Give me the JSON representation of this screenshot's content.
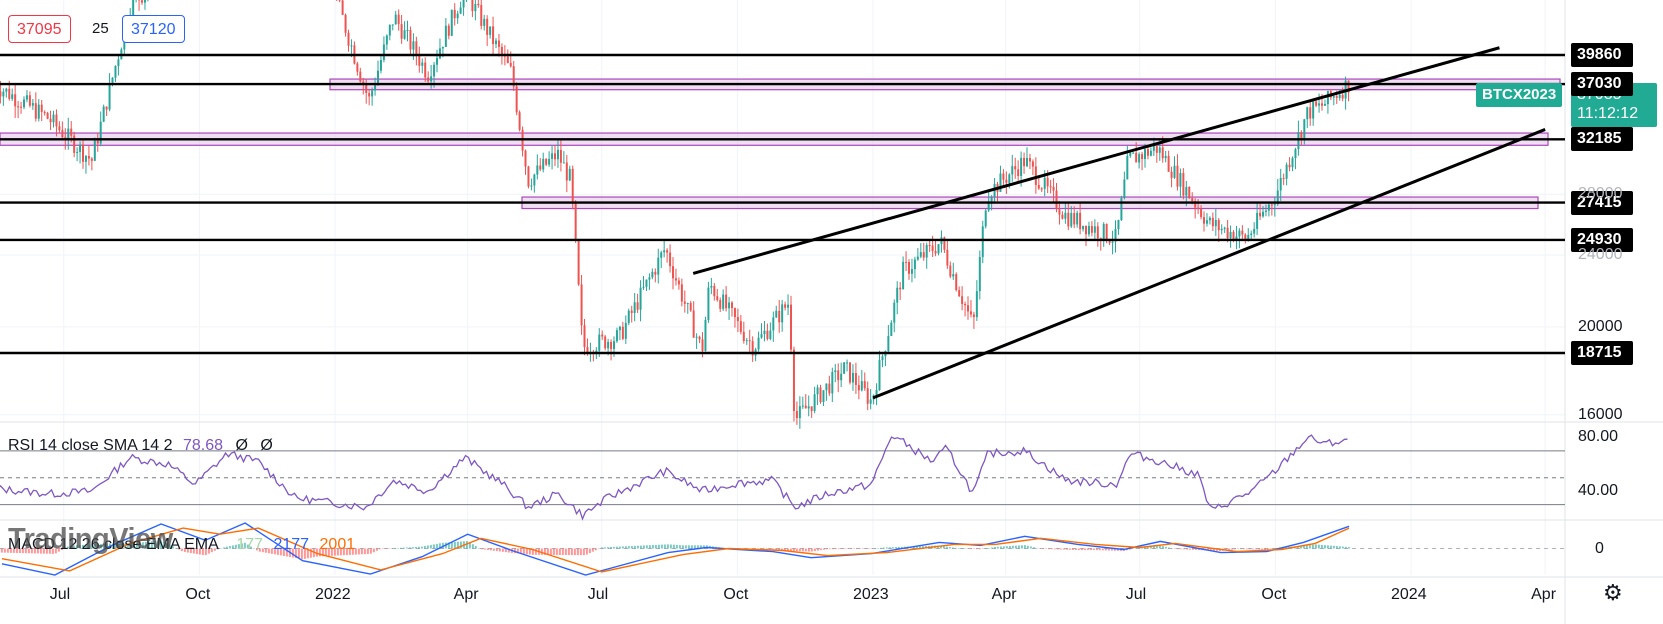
{
  "header": {
    "bid": "37095",
    "spread": "25",
    "ask": "37120"
  },
  "symbol_tag": "BTCX2023",
  "current_price": {
    "price": "37085",
    "countdown": "11:12:12"
  },
  "colors": {
    "up": "#26a69a",
    "down": "#ef5350",
    "accent": "#22ab94",
    "zone_fill": "#e1bee7",
    "zone_stroke": "#ab47bc",
    "rsi": "#7e57c2",
    "macd": "#2962ff",
    "signal": "#ff6d00"
  },
  "chart_data": [
    {
      "type": "candlestick",
      "title": "",
      "x_ticks": [
        "Jul",
        "Oct",
        "2022",
        "Apr",
        "Jul",
        "Oct",
        "2023",
        "Apr",
        "Jul",
        "Oct",
        "2024",
        "Apr"
      ],
      "y_ticks": [
        16000,
        20000,
        24000,
        28000
      ],
      "y_scale": "log",
      "ylim": [
        14500,
        41000
      ],
      "horizontal_levels": [
        39860,
        37030,
        32185,
        27415,
        24930,
        18715
      ],
      "zones": [
        {
          "low": 36500,
          "high": 37500
        },
        {
          "low": 31700,
          "high": 32700
        },
        {
          "low": 27000,
          "high": 27800
        }
      ],
      "trendlines": [
        {
          "from": {
            "x": "2022-09-01",
            "y": 22900
          },
          "to": {
            "x": "2024-03-01",
            "y": 40600
          }
        },
        {
          "from": {
            "x": "2023-01-01",
            "y": 16700
          },
          "to": {
            "x": "2024-04-01",
            "y": 33000
          }
        }
      ],
      "price_path": [
        {
          "x": "2021-05-15",
          "y": 37000
        },
        {
          "x": "2021-06-20",
          "y": 34000
        },
        {
          "x": "2021-07-20",
          "y": 30500
        },
        {
          "x": "2021-08-15",
          "y": 45000
        },
        {
          "x": "2021-09-10",
          "y": 50000
        },
        {
          "x": "2021-11-10",
          "y": 65000
        },
        {
          "x": "2021-12-31",
          "y": 47000
        },
        {
          "x": "2022-01-24",
          "y": 35500
        },
        {
          "x": "2022-02-10",
          "y": 44000
        },
        {
          "x": "2022-03-05",
          "y": 38000
        },
        {
          "x": "2022-03-30",
          "y": 47000
        },
        {
          "x": "2022-05-01",
          "y": 38000
        },
        {
          "x": "2022-05-12",
          "y": 29000
        },
        {
          "x": "2022-06-01",
          "y": 31000
        },
        {
          "x": "2022-06-10",
          "y": 29000
        },
        {
          "x": "2022-06-18",
          "y": 19000
        },
        {
          "x": "2022-07-13",
          "y": 19500
        },
        {
          "x": "2022-08-13",
          "y": 24400
        },
        {
          "x": "2022-09-07",
          "y": 18800
        },
        {
          "x": "2022-09-12",
          "y": 22300
        },
        {
          "x": "2022-10-12",
          "y": 19000
        },
        {
          "x": "2022-11-05",
          "y": 21300
        },
        {
          "x": "2022-11-09",
          "y": 15800
        },
        {
          "x": "2022-12-13",
          "y": 18000
        },
        {
          "x": "2022-12-31",
          "y": 16550
        },
        {
          "x": "2023-01-21",
          "y": 23000
        },
        {
          "x": "2023-02-16",
          "y": 24800
        },
        {
          "x": "2023-03-10",
          "y": 20000
        },
        {
          "x": "2023-03-19",
          "y": 28000
        },
        {
          "x": "2023-04-14",
          "y": 30500
        },
        {
          "x": "2023-05-12",
          "y": 26500
        },
        {
          "x": "2023-06-15",
          "y": 25000
        },
        {
          "x": "2023-06-23",
          "y": 30500
        },
        {
          "x": "2023-07-13",
          "y": 31500
        },
        {
          "x": "2023-08-17",
          "y": 26000
        },
        {
          "x": "2023-09-11",
          "y": 25000
        },
        {
          "x": "2023-10-01",
          "y": 27900
        },
        {
          "x": "2023-10-23",
          "y": 34500
        },
        {
          "x": "2023-11-01",
          "y": 35000
        },
        {
          "x": "2023-11-20",
          "y": 37085
        }
      ]
    },
    {
      "type": "line",
      "title": "RSI 14 close SMA 14 2",
      "legend_values": [
        "78.68",
        "Ø",
        "Ø"
      ],
      "y_ticks": [
        "80.00",
        "40.00"
      ],
      "ylim": [
        20,
        90
      ],
      "bands": [
        70,
        50,
        30
      ],
      "series": [
        {
          "name": "RSI",
          "points": [
            {
              "x": "2021-05-15",
              "y": 42
            },
            {
              "x": "2021-06-22",
              "y": 38
            },
            {
              "x": "2021-07-20",
              "y": 40
            },
            {
              "x": "2021-08-15",
              "y": 65
            },
            {
              "x": "2021-09-10",
              "y": 60
            },
            {
              "x": "2021-09-28",
              "y": 45
            },
            {
              "x": "2021-10-20",
              "y": 68
            },
            {
              "x": "2021-11-10",
              "y": 62
            },
            {
              "x": "2021-12-05",
              "y": 35
            },
            {
              "x": "2022-01-22",
              "y": 28
            },
            {
              "x": "2022-02-10",
              "y": 48
            },
            {
              "x": "2022-03-05",
              "y": 40
            },
            {
              "x": "2022-03-30",
              "y": 65
            },
            {
              "x": "2022-04-25",
              "y": 45
            },
            {
              "x": "2022-05-12",
              "y": 28
            },
            {
              "x": "2022-06-01",
              "y": 38
            },
            {
              "x": "2022-06-18",
              "y": 22
            },
            {
              "x": "2022-07-05",
              "y": 35
            },
            {
              "x": "2022-08-13",
              "y": 55
            },
            {
              "x": "2022-09-07",
              "y": 40
            },
            {
              "x": "2022-10-01",
              "y": 46
            },
            {
              "x": "2022-10-25",
              "y": 48
            },
            {
              "x": "2022-11-09",
              "y": 28
            },
            {
              "x": "2022-12-01",
              "y": 38
            },
            {
              "x": "2022-12-31",
              "y": 45
            },
            {
              "x": "2023-01-14",
              "y": 82
            },
            {
              "x": "2023-02-10",
              "y": 62
            },
            {
              "x": "2023-02-20",
              "y": 72
            },
            {
              "x": "2023-03-10",
              "y": 38
            },
            {
              "x": "2023-03-20",
              "y": 68
            },
            {
              "x": "2023-04-14",
              "y": 70
            },
            {
              "x": "2023-05-12",
              "y": 48
            },
            {
              "x": "2023-06-15",
              "y": 45
            },
            {
              "x": "2023-06-25",
              "y": 68
            },
            {
              "x": "2023-07-15",
              "y": 62
            },
            {
              "x": "2023-08-10",
              "y": 52
            },
            {
              "x": "2023-08-18",
              "y": 25
            },
            {
              "x": "2023-09-15",
              "y": 40
            },
            {
              "x": "2023-10-01",
              "y": 55
            },
            {
              "x": "2023-10-23",
              "y": 80
            },
            {
              "x": "2023-11-05",
              "y": 75
            },
            {
              "x": "2023-11-20",
              "y": 78.68
            }
          ]
        }
      ]
    },
    {
      "type": "line",
      "title": "MACD 12 26 close EMA EMA",
      "legend_values": [
        "177",
        "2177",
        "2001"
      ],
      "y_ticks": [
        "0"
      ],
      "ylim": [
        -2600,
        2600
      ],
      "series": [
        {
          "name": "MACD",
          "points": [
            {
              "x": "2021-05-20",
              "y": -1500
            },
            {
              "x": "2021-06-25",
              "y": -2600
            },
            {
              "x": "2021-08-01",
              "y": 200
            },
            {
              "x": "2021-09-05",
              "y": 2400
            },
            {
              "x": "2021-10-05",
              "y": 800
            },
            {
              "x": "2021-11-01",
              "y": 2500
            },
            {
              "x": "2021-12-10",
              "y": -1200
            },
            {
              "x": "2022-01-25",
              "y": -2500
            },
            {
              "x": "2022-03-01",
              "y": -800
            },
            {
              "x": "2022-04-01",
              "y": 1400
            },
            {
              "x": "2022-05-01",
              "y": -200
            },
            {
              "x": "2022-06-20",
              "y": -2600
            },
            {
              "x": "2022-08-15",
              "y": -400
            },
            {
              "x": "2022-09-10",
              "y": 100
            },
            {
              "x": "2022-10-25",
              "y": -300
            },
            {
              "x": "2022-11-20",
              "y": -900
            },
            {
              "x": "2022-12-31",
              "y": -500
            },
            {
              "x": "2023-02-15",
              "y": 600
            },
            {
              "x": "2023-03-15",
              "y": 300
            },
            {
              "x": "2023-04-14",
              "y": 1200
            },
            {
              "x": "2023-05-20",
              "y": 400
            },
            {
              "x": "2023-06-20",
              "y": -100
            },
            {
              "x": "2023-07-15",
              "y": 700
            },
            {
              "x": "2023-08-25",
              "y": -400
            },
            {
              "x": "2023-09-25",
              "y": -300
            },
            {
              "x": "2023-10-20",
              "y": 600
            },
            {
              "x": "2023-11-20",
              "y": 2177
            }
          ]
        },
        {
          "name": "Signal",
          "points": [
            {
              "x": "2021-05-20",
              "y": -1000
            },
            {
              "x": "2021-07-05",
              "y": -2200
            },
            {
              "x": "2021-08-15",
              "y": 500
            },
            {
              "x": "2021-09-20",
              "y": 2000
            },
            {
              "x": "2021-10-15",
              "y": 1400
            },
            {
              "x": "2021-11-10",
              "y": 2000
            },
            {
              "x": "2021-12-20",
              "y": -500
            },
            {
              "x": "2022-02-01",
              "y": -2100
            },
            {
              "x": "2022-03-15",
              "y": -500
            },
            {
              "x": "2022-04-10",
              "y": 1000
            },
            {
              "x": "2022-05-15",
              "y": -100
            },
            {
              "x": "2022-07-01",
              "y": -2300
            },
            {
              "x": "2022-08-25",
              "y": -600
            },
            {
              "x": "2022-09-25",
              "y": 0
            },
            {
              "x": "2022-11-01",
              "y": -200
            },
            {
              "x": "2022-12-01",
              "y": -700
            },
            {
              "x": "2023-01-10",
              "y": -400
            },
            {
              "x": "2023-02-25",
              "y": 400
            },
            {
              "x": "2023-03-25",
              "y": 400
            },
            {
              "x": "2023-04-25",
              "y": 1000
            },
            {
              "x": "2023-06-01",
              "y": 400
            },
            {
              "x": "2023-07-01",
              "y": 100
            },
            {
              "x": "2023-07-25",
              "y": 500
            },
            {
              "x": "2023-09-05",
              "y": -300
            },
            {
              "x": "2023-10-05",
              "y": -100
            },
            {
              "x": "2023-10-28",
              "y": 500
            },
            {
              "x": "2023-11-20",
              "y": 2001
            }
          ]
        }
      ]
    }
  ],
  "watermark": "TradingView",
  "settings_icon": "gear-icon"
}
